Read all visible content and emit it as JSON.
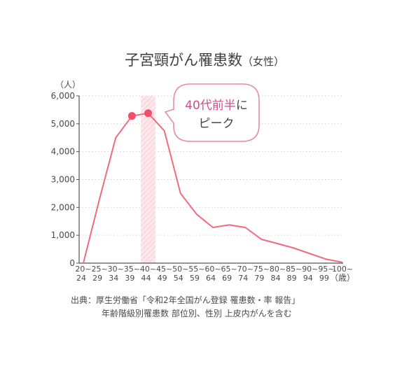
{
  "title": {
    "main": "子宮頸がん罹患数",
    "sub": "（女性）"
  },
  "callout": {
    "highlight": "40代前半",
    "line1_suffix": "に",
    "line2": "ピーク"
  },
  "source": {
    "line1": "出典：厚生労働省「令和2年全国がん登録 罹患数・率 報告」",
    "line2": "年齢階級別罹患数 部位別、性別 上皮内がんを含む"
  },
  "colors": {
    "line": "#f06b7c",
    "marker": "#f0506a",
    "highlight_band": "#fbd3d8",
    "grid": "#cfcfcf",
    "text": "#4a4a4a"
  },
  "chart_data": {
    "type": "line",
    "title": "子宮頸がん罹患数（女性）",
    "ylabel": "（人）",
    "xlabel": "（歳）",
    "ylim": [
      0,
      6000
    ],
    "yticks": [
      0,
      1000,
      2000,
      3000,
      4000,
      5000,
      6000
    ],
    "ytick_labels": [
      "0",
      "1,000",
      "2,000",
      "3,000",
      "4,000",
      "5,000",
      "6,000"
    ],
    "categories": [
      "20~24",
      "25~29",
      "30~34",
      "35~39",
      "40~44",
      "45~49",
      "50~54",
      "55~59",
      "60~64",
      "65~69",
      "70~74",
      "75~79",
      "80~84",
      "85~89",
      "90~94",
      "95~99",
      "100~"
    ],
    "category_top": [
      "20~",
      "25~",
      "30~",
      "35~",
      "40~",
      "45~",
      "50~",
      "55~",
      "60~",
      "65~",
      "70~",
      "75~",
      "80~",
      "85~",
      "90~",
      "95~",
      "100~"
    ],
    "category_bottom": [
      "24",
      "29",
      "34",
      "39",
      "44",
      "49",
      "54",
      "59",
      "64",
      "69",
      "74",
      "79",
      "84",
      "89",
      "94",
      "99",
      ""
    ],
    "series": [
      {
        "values": [
          0,
          2300,
          4500,
          5280,
          5380,
          4750,
          2500,
          1750,
          1280,
          1370,
          1280,
          850,
          700,
          540,
          340,
          140,
          30
        ]
      }
    ],
    "markers_at": [
      3,
      4
    ],
    "highlight_category": "40~44",
    "grid": "horizontal-dotted"
  }
}
